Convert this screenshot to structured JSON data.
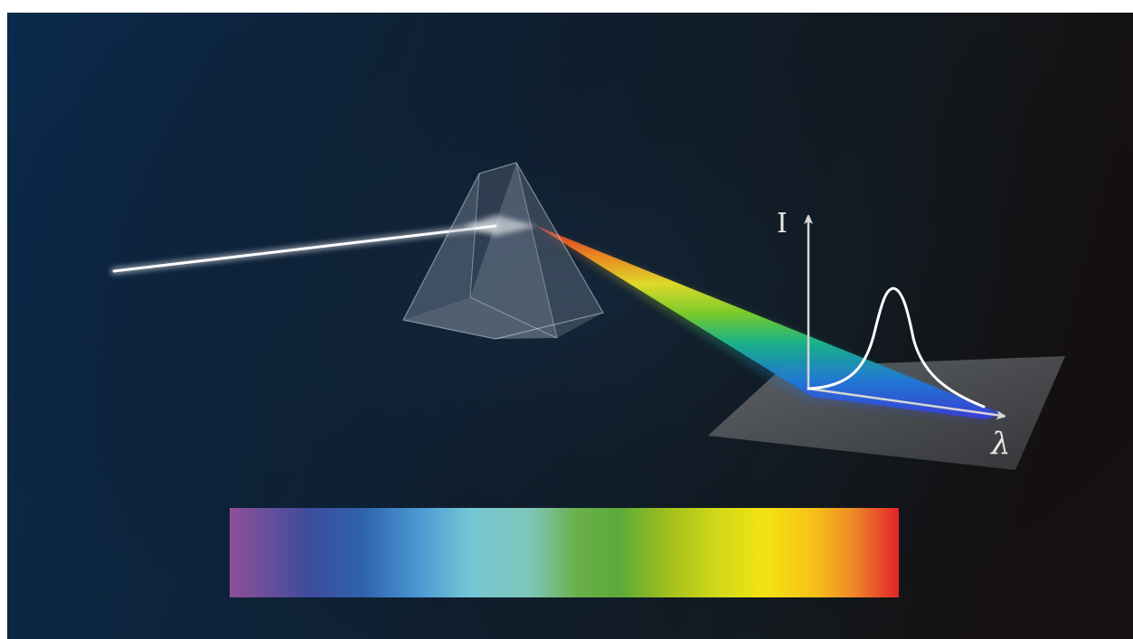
{
  "heading_fragment": "",
  "diagram": {
    "intensity_axis_label": "I",
    "wavelength_axis_label": "λ"
  },
  "spectrum_bar": {
    "colors": [
      "#8e4f98",
      "#3d4c9c",
      "#2f63ad",
      "#4a96d2",
      "#74c7d6",
      "#7fc6b6",
      "#6ab04a",
      "#5aa93a",
      "#a5c21b",
      "#d3d91a",
      "#f3e313",
      "#f6c318",
      "#ef8c26",
      "#e3232b"
    ]
  },
  "colors": {
    "background_left": "#0b2a4c",
    "background_right": "#151110",
    "beam": "#ffffff",
    "curve": "#ffffff",
    "axes": "#d0d0d0"
  },
  "icons": {
    "prism": "triangular-prism-icon"
  }
}
